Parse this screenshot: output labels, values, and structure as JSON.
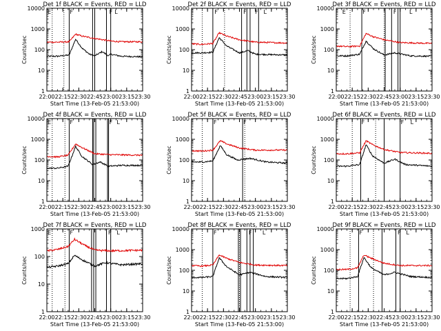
{
  "colors": {
    "events": "#000000",
    "lld": "#e00000",
    "axes": "#000000",
    "background": "#ffffff"
  },
  "chart_data": [
    {
      "type": "line",
      "title": "Det 1f BLACK = Events, RED = LLD",
      "xlabel": "Start Time (13-Feb-05 21:53:00)",
      "ylabel": "Counts/sec",
      "yscale": "log",
      "ylim": [
        1,
        10000
      ],
      "xlim": [
        "22:00",
        "23:30"
      ],
      "xticks": [
        "22:00",
        "22:15",
        "22:30",
        "22:45",
        "23:00",
        "23:15",
        "23:30"
      ],
      "yticks": [
        "1",
        "10",
        "100",
        "1000",
        "10000"
      ],
      "dotted_lines": [
        "22:05",
        "22:16"
      ],
      "solid_lines": [
        "22:21",
        "22:43",
        "22:45",
        "22:56",
        "23:00"
      ],
      "markers": [
        {
          "label": "E",
          "x": "22:00"
        },
        {
          "label": "F",
          "x": "22:21"
        },
        {
          "label": "F",
          "x": "22:58"
        },
        {
          "label": "L",
          "x": "23:03"
        }
      ],
      "series": [
        {
          "name": "BLACK = Events",
          "x": [
            "22:00",
            "22:10",
            "22:21",
            "22:27",
            "22:33",
            "22:40",
            "22:45",
            "22:52",
            "22:58",
            "23:00",
            "23:10",
            "23:30"
          ],
          "values": [
            48,
            48,
            55,
            320,
            120,
            60,
            50,
            80,
            50,
            60,
            48,
            45
          ]
        },
        {
          "name": "RED = LLD",
          "x": [
            "22:00",
            "22:10",
            "22:21",
            "22:27",
            "22:33",
            "22:45",
            "23:00",
            "23:10",
            "23:30"
          ],
          "values": [
            230,
            230,
            240,
            560,
            450,
            350,
            260,
            240,
            240
          ]
        }
      ]
    },
    {
      "type": "line",
      "title": "Det 2f BLACK = Events, RED = LLD",
      "xlabel": "Start Time (13-Feb-05 21:53:00)",
      "ylabel": "Counts/sec",
      "yscale": "log",
      "ylim": [
        1,
        10000
      ],
      "xlim": [
        "22:00",
        "23:30"
      ],
      "xticks": [
        "22:00",
        "22:15",
        "22:30",
        "22:45",
        "23:00",
        "23:15",
        "23:30"
      ],
      "yticks": [
        "1",
        "10",
        "100",
        "1000",
        "10000"
      ],
      "dotted_lines": [
        "22:10",
        "22:31"
      ],
      "solid_lines": [
        "22:20",
        "22:47",
        "22:52",
        "22:55",
        "23:03"
      ],
      "markers": [
        {
          "label": "F",
          "x": "22:21"
        },
        {
          "label": "F",
          "x": "22:48"
        },
        {
          "label": "F",
          "x": "22:59"
        },
        {
          "label": "L",
          "x": "23:07"
        }
      ],
      "series": [
        {
          "name": "BLACK = Events",
          "x": [
            "22:00",
            "22:10",
            "22:20",
            "22:26",
            "22:33",
            "22:45",
            "22:53",
            "23:00",
            "23:30"
          ],
          "values": [
            70,
            70,
            75,
            380,
            150,
            70,
            90,
            60,
            55
          ]
        },
        {
          "name": "RED = LLD",
          "x": [
            "22:00",
            "22:10",
            "22:20",
            "22:26",
            "22:33",
            "22:45",
            "23:00",
            "23:30"
          ],
          "values": [
            190,
            180,
            200,
            650,
            450,
            300,
            230,
            210
          ]
        }
      ]
    },
    {
      "type": "line",
      "title": "Det 3f BLACK = Events, RED = LLD",
      "xlabel": "Start Time (13-Feb-05 21:53:00)",
      "ylabel": "Counts/sec",
      "yscale": "log",
      "ylim": [
        1,
        10000
      ],
      "xlim": [
        "22:00",
        "23:30"
      ],
      "xticks": [
        "22:00",
        "22:15",
        "22:30",
        "22:45",
        "23:00",
        "23:15",
        "23:30"
      ],
      "yticks": [
        "1",
        "10",
        "100",
        "1000",
        "10000"
      ],
      "dotted_lines": [
        "22:13",
        "22:45"
      ],
      "solid_lines": [
        "22:24",
        "22:46",
        "22:52",
        "22:58",
        "23:00"
      ],
      "markers": [
        {
          "label": "E",
          "x": "22:05"
        },
        {
          "label": "F",
          "x": "22:24"
        },
        {
          "label": "F",
          "x": "22:53"
        },
        {
          "label": "L",
          "x": "23:08"
        }
      ],
      "series": [
        {
          "name": "BLACK = Events",
          "x": [
            "22:00",
            "22:10",
            "22:22",
            "22:28",
            "22:35",
            "22:45",
            "22:55",
            "23:10",
            "23:30"
          ],
          "values": [
            50,
            50,
            60,
            260,
            110,
            55,
            70,
            50,
            48
          ]
        },
        {
          "name": "RED = LLD",
          "x": [
            "22:00",
            "22:10",
            "22:22",
            "22:28",
            "22:35",
            "22:45",
            "23:00",
            "23:30"
          ],
          "values": [
            150,
            140,
            150,
            600,
            420,
            300,
            220,
            200
          ]
        }
      ]
    },
    {
      "type": "line",
      "title": "Det 4f BLACK = Events, RED = LLD",
      "xlabel": "Start Time (13-Feb-05 21:53:00)",
      "ylabel": "Counts/sec",
      "yscale": "log",
      "ylim": [
        1,
        10000
      ],
      "xlim": [
        "22:00",
        "23:30"
      ],
      "xticks": [
        "22:00",
        "22:15",
        "22:30",
        "22:45",
        "23:00",
        "23:15",
        "23:30"
      ],
      "yticks": [
        "1",
        "10",
        "100",
        "1000",
        "10000"
      ],
      "dotted_lines": [
        "22:05",
        "22:17"
      ],
      "solid_lines": [
        "22:21",
        "22:43",
        "22:44",
        "22:46",
        "22:57",
        "22:58"
      ],
      "markers": [
        {
          "label": "E",
          "x": "22:00"
        },
        {
          "label": "F",
          "x": "22:21"
        },
        {
          "label": "F",
          "x": "22:58"
        },
        {
          "label": "L",
          "x": "23:05"
        }
      ],
      "series": [
        {
          "name": "BLACK = Events",
          "x": [
            "22:00",
            "22:10",
            "22:20",
            "22:27",
            "22:33",
            "22:43",
            "22:50",
            "22:58",
            "23:10",
            "23:30"
          ],
          "values": [
            40,
            40,
            50,
            450,
            150,
            60,
            80,
            50,
            55,
            55
          ]
        },
        {
          "name": "RED = LLD",
          "x": [
            "22:00",
            "22:10",
            "22:20",
            "22:27",
            "22:33",
            "22:45",
            "23:00",
            "23:30"
          ],
          "values": [
            150,
            140,
            170,
            600,
            400,
            200,
            180,
            170
          ]
        }
      ]
    },
    {
      "type": "line",
      "title": "Det 5f BLACK = Events, RED = LLD",
      "xlabel": "Start Time (13-Feb-05 21:53:00)",
      "ylabel": "Counts/sec",
      "yscale": "log",
      "ylim": [
        1,
        10000
      ],
      "xlim": [
        "22:00",
        "23:30"
      ],
      "xticks": [
        "22:00",
        "22:15",
        "22:30",
        "22:45",
        "23:00",
        "23:15",
        "23:30"
      ],
      "yticks": [
        "1",
        "10",
        "100",
        "1000",
        "10000"
      ],
      "dotted_lines": [
        "22:10",
        "22:50"
      ],
      "solid_lines": [
        "22:20",
        "22:48"
      ],
      "markers": [
        {
          "label": "F",
          "x": "22:20"
        },
        {
          "label": "F",
          "x": "22:48"
        }
      ],
      "series": [
        {
          "name": "BLACK = Events",
          "x": [
            "22:00",
            "22:10",
            "22:20",
            "22:27",
            "22:33",
            "22:43",
            "22:55",
            "23:10",
            "23:30"
          ],
          "values": [
            80,
            80,
            90,
            500,
            180,
            100,
            120,
            80,
            70
          ]
        },
        {
          "name": "RED = LLD",
          "x": [
            "22:00",
            "22:10",
            "22:20",
            "22:27",
            "22:33",
            "22:45",
            "23:00",
            "23:30"
          ],
          "values": [
            280,
            270,
            300,
            850,
            600,
            380,
            300,
            300
          ]
        }
      ]
    },
    {
      "type": "line",
      "title": "Det 6f BLACK = Events, RED = LLD",
      "xlabel": "Start Time (13-Feb-05 21:53:00)",
      "ylabel": "Counts/sec",
      "yscale": "log",
      "ylim": [
        1,
        10000
      ],
      "xlim": [
        "22:00",
        "23:30"
      ],
      "xticks": [
        "22:00",
        "22:15",
        "22:30",
        "22:45",
        "23:00",
        "23:15",
        "23:30"
      ],
      "yticks": [
        "1",
        "10",
        "100",
        "1000",
        "10000"
      ],
      "dotted_lines": [
        "22:15",
        "22:37"
      ],
      "solid_lines": [
        "22:23",
        "22:45",
        "23:00"
      ],
      "markers": [
        {
          "label": "F",
          "x": "22:23"
        },
        {
          "label": "F",
          "x": "23:00"
        },
        {
          "label": "L",
          "x": "23:09"
        }
      ],
      "series": [
        {
          "name": "BLACK = Events",
          "x": [
            "22:00",
            "22:10",
            "22:22",
            "22:28",
            "22:34",
            "22:45",
            "22:55",
            "23:05",
            "23:30"
          ],
          "values": [
            50,
            50,
            60,
            550,
            160,
            70,
            110,
            60,
            50
          ]
        },
        {
          "name": "RED = LLD",
          "x": [
            "22:00",
            "22:10",
            "22:22",
            "22:28",
            "22:34",
            "22:45",
            "23:00",
            "23:30"
          ],
          "values": [
            200,
            200,
            220,
            850,
            550,
            320,
            230,
            210
          ]
        }
      ]
    },
    {
      "type": "line",
      "title": "Det 7f BLACK = Events, RED = LLD",
      "xlabel": "Start Time (13-Feb-05 21:53:00)",
      "ylabel": "Counts/sec",
      "yscale": "log",
      "ylim": [
        1,
        1000
      ],
      "xlim": [
        "22:00",
        "23:30"
      ],
      "xticks": [
        "22:00",
        "22:15",
        "22:30",
        "22:45",
        "23:00",
        "23:15",
        "23:30"
      ],
      "yticks": [
        "1",
        "10",
        "100",
        "1000"
      ],
      "dotted_lines": [
        "22:05",
        "22:17"
      ],
      "solid_lines": [
        "22:21",
        "22:42",
        "22:44",
        "22:46",
        "22:56",
        "23:00"
      ],
      "markers": [
        {
          "label": "E",
          "x": "22:00"
        },
        {
          "label": "F",
          "x": "22:21"
        },
        {
          "label": "F",
          "x": "22:57"
        },
        {
          "label": "L",
          "x": "23:05"
        }
      ],
      "series": [
        {
          "name": "BLACK = Events",
          "x": [
            "22:00",
            "22:10",
            "22:20",
            "22:26",
            "22:35",
            "22:45",
            "22:55",
            "23:10",
            "23:30"
          ],
          "values": [
            40,
            45,
            55,
            110,
            70,
            45,
            60,
            50,
            55
          ]
        },
        {
          "name": "RED = LLD",
          "x": [
            "22:00",
            "22:10",
            "22:20",
            "22:26",
            "22:35",
            "22:45",
            "23:00",
            "23:30"
          ],
          "values": [
            160,
            180,
            230,
            420,
            260,
            170,
            160,
            170
          ]
        }
      ]
    },
    {
      "type": "line",
      "title": "Det 8f BLACK = Events, RED = LLD",
      "xlabel": "Start Time (13-Feb-05 21:53:00)",
      "ylabel": "Counts/sec",
      "yscale": "log",
      "ylim": [
        1,
        10000
      ],
      "xlim": [
        "22:00",
        "23:30"
      ],
      "xticks": [
        "22:00",
        "22:15",
        "22:30",
        "22:45",
        "23:00",
        "23:15",
        "23:30"
      ],
      "yticks": [
        "1",
        "10",
        "100",
        "1000",
        "10000"
      ],
      "dotted_lines": [
        "22:10",
        "22:45"
      ],
      "solid_lines": [
        "22:20",
        "22:44",
        "22:46",
        "22:52",
        "22:55",
        "22:58"
      ],
      "markers": [
        {
          "label": "F",
          "x": "22:20"
        },
        {
          "label": "F",
          "x": "22:53"
        },
        {
          "label": "L",
          "x": "23:06"
        }
      ],
      "series": [
        {
          "name": "BLACK = Events",
          "x": [
            "22:00",
            "22:10",
            "22:20",
            "22:26",
            "22:33",
            "22:45",
            "22:55",
            "23:10",
            "23:30"
          ],
          "values": [
            45,
            45,
            50,
            400,
            150,
            60,
            80,
            50,
            45
          ]
        },
        {
          "name": "RED = LLD",
          "x": [
            "22:00",
            "22:10",
            "22:20",
            "22:26",
            "22:33",
            "22:45",
            "23:00",
            "23:30"
          ],
          "values": [
            170,
            160,
            180,
            550,
            380,
            240,
            180,
            170
          ]
        }
      ]
    },
    {
      "type": "line",
      "title": "Det 9f BLACK = Events, RED = LLD",
      "xlabel": "Start Time (13-Feb-05 21:53:00)",
      "ylabel": "Counts/sec",
      "yscale": "log",
      "ylim": [
        1,
        10000
      ],
      "xlim": [
        "22:00",
        "23:30"
      ],
      "xticks": [
        "22:00",
        "22:15",
        "22:30",
        "22:45",
        "23:00",
        "23:15",
        "23:30"
      ],
      "yticks": [
        "1",
        "10",
        "100",
        "1000",
        "10000"
      ],
      "dotted_lines": [
        "22:13",
        "22:35"
      ],
      "solid_lines": [
        "22:21",
        "22:43",
        "22:56",
        "23:00"
      ],
      "markers": [
        {
          "label": "F",
          "x": "22:21"
        },
        {
          "label": "F",
          "x": "22:57"
        },
        {
          "label": "L",
          "x": "23:05"
        }
      ],
      "series": [
        {
          "name": "BLACK = Events",
          "x": [
            "22:00",
            "22:10",
            "22:20",
            "22:26",
            "22:33",
            "22:45",
            "22:55",
            "23:10",
            "23:30"
          ],
          "values": [
            40,
            40,
            50,
            420,
            130,
            60,
            80,
            50,
            45
          ]
        },
        {
          "name": "RED = LLD",
          "x": [
            "22:00",
            "22:10",
            "22:20",
            "22:26",
            "22:33",
            "22:45",
            "23:00",
            "23:30"
          ],
          "values": [
            110,
            110,
            130,
            550,
            380,
            220,
            170,
            170
          ]
        }
      ]
    }
  ]
}
